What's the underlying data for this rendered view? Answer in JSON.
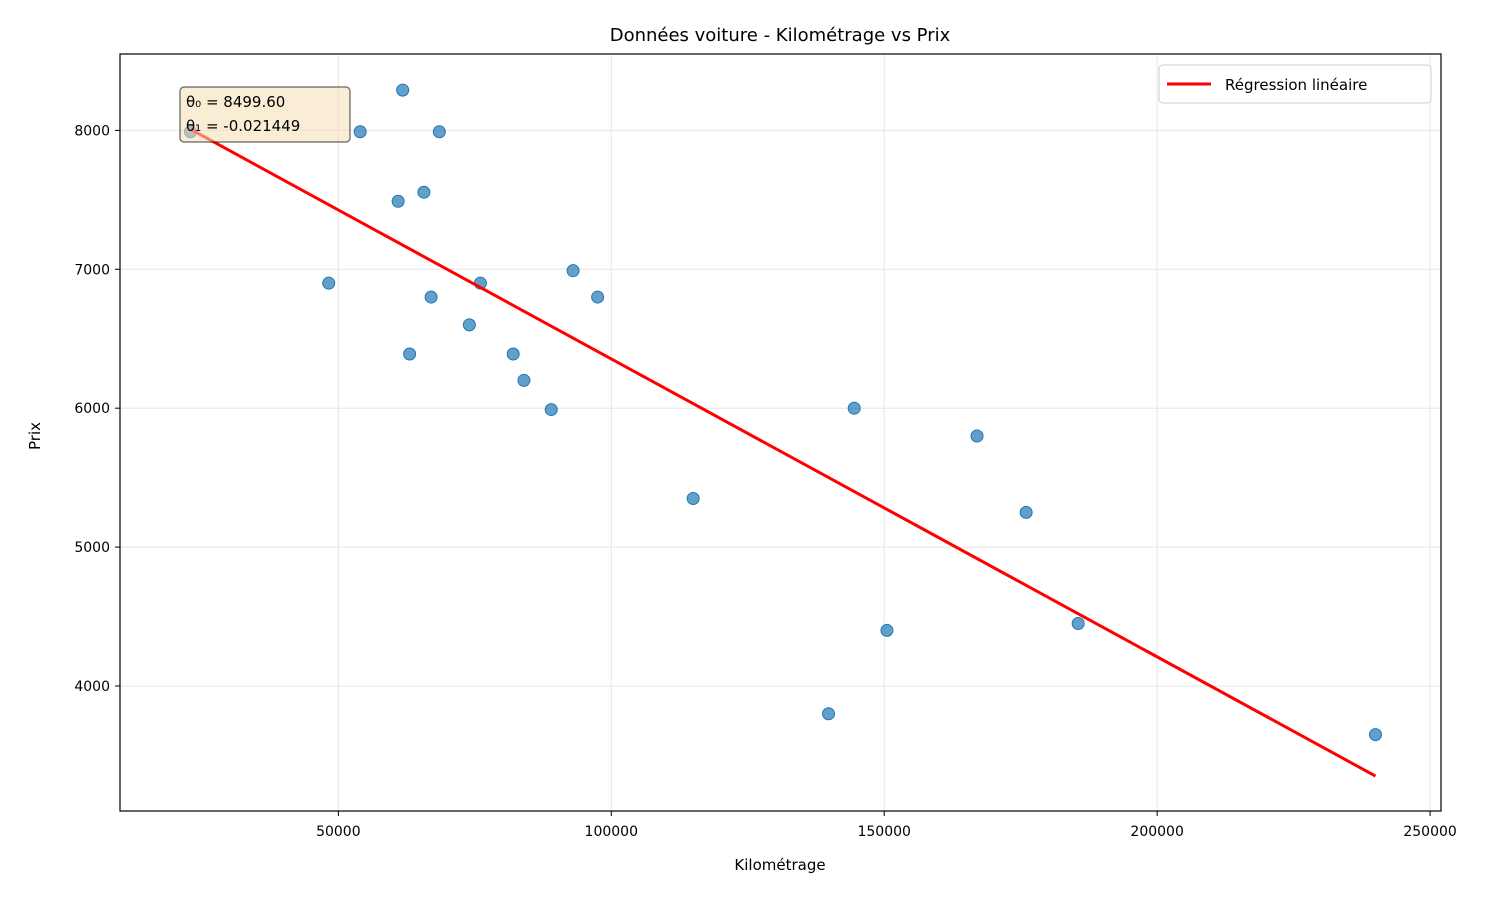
{
  "chart_data": {
    "type": "scatter",
    "title": "Données voiture - Kilométrage vs Prix",
    "xlabel": "Kilométrage",
    "ylabel": "Prix",
    "xlim": [
      10000,
      252000
    ],
    "ylim": [
      3100,
      8550
    ],
    "x_ticks": [
      50000,
      100000,
      150000,
      200000,
      250000
    ],
    "y_ticks": [
      4000,
      5000,
      6000,
      7000,
      8000
    ],
    "grid": true,
    "legend_position": "top-right",
    "points_color": "#1f77b4",
    "series": [
      {
        "kind": "points",
        "x": [
          22899,
          48235,
          54000,
          61789,
          60949,
          65674,
          68500,
          67000,
          63060,
          74000,
          76025,
          82029,
          84000,
          89000,
          93000,
          97500,
          115000,
          139800,
          144500,
          150500,
          167000,
          176000,
          185530,
          240000
        ],
        "y": [
          7990,
          6900,
          7990,
          8290,
          7490,
          7555,
          7990,
          6800,
          6390,
          6600,
          6900,
          6390,
          6200,
          5990,
          6990,
          6800,
          5350,
          3800,
          6000,
          4400,
          5800,
          5250,
          4450,
          3650
        ]
      },
      {
        "kind": "line",
        "name": "Régression linéaire",
        "color": "#ff0000",
        "x": [
          22899,
          240000
        ],
        "y": [
          8008.5,
          3351.7
        ]
      }
    ],
    "annotation": {
      "lines": [
        "θ₀ = 8499.60",
        "θ₁ = -0.021449"
      ],
      "position": "top-left",
      "background": "#f5deb3"
    }
  }
}
